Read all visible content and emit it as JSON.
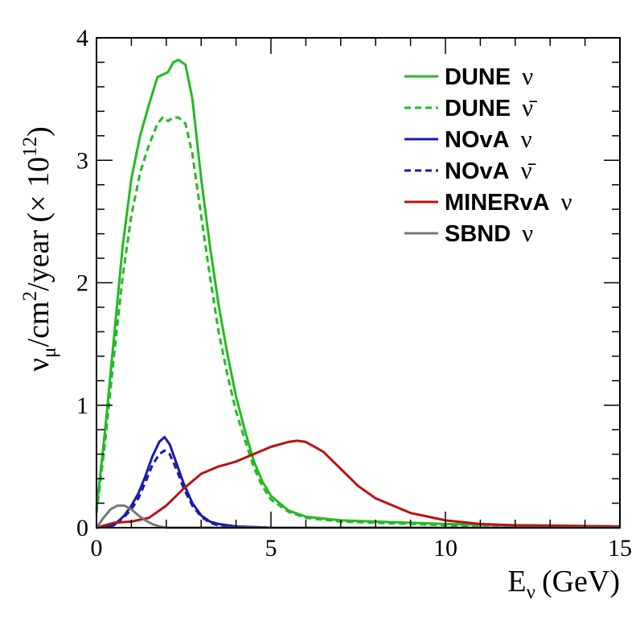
{
  "chart_data": {
    "type": "line",
    "xlabel": "E",
    "xlabel_sub": "ν",
    "xlabel_unit": "(GeV)",
    "ylabel_nu": "ν",
    "ylabel_sub": "μ",
    "ylabel_mid": "/cm",
    "ylabel_sup": "2",
    "ylabel_tail": "/year (× 10",
    "ylabel_exp": "12",
    "ylabel_close": ")",
    "xlim": [
      0,
      15
    ],
    "ylim": [
      0,
      4
    ],
    "x_ticks": [
      "0",
      "5",
      "10",
      "15"
    ],
    "y_ticks": [
      "0",
      "1",
      "2",
      "3",
      "4"
    ],
    "legend_position": "top-right",
    "series": [
      {
        "name": "DUNE",
        "symbol": "ν",
        "color": "#22bb22",
        "style": "solid",
        "x": [
          0,
          0.25,
          0.5,
          0.75,
          1.0,
          1.25,
          1.5,
          1.75,
          1.9,
          2.05,
          2.2,
          2.35,
          2.55,
          2.75,
          3.0,
          3.25,
          3.5,
          3.75,
          4.0,
          4.25,
          4.5,
          4.75,
          5.0,
          5.5,
          6.0,
          7.0,
          8.0,
          9.0,
          10.0,
          12.0,
          15.0
        ],
        "y": [
          0.15,
          0.8,
          1.55,
          2.3,
          2.85,
          3.2,
          3.45,
          3.68,
          3.7,
          3.72,
          3.8,
          3.82,
          3.78,
          3.5,
          2.85,
          2.3,
          1.82,
          1.42,
          1.07,
          0.8,
          0.55,
          0.38,
          0.26,
          0.14,
          0.09,
          0.06,
          0.05,
          0.04,
          0.03,
          0.02,
          0.01
        ]
      },
      {
        "name": "DUNE",
        "symbol": "ν̄",
        "color": "#22bb22",
        "style": "dashed",
        "x": [
          0,
          0.25,
          0.5,
          0.75,
          1.0,
          1.25,
          1.5,
          1.75,
          1.9,
          2.05,
          2.2,
          2.35,
          2.55,
          2.75,
          3.0,
          3.25,
          3.5,
          3.75,
          4.0,
          4.25,
          4.5,
          4.75,
          5.0,
          5.5,
          6.0,
          7.0,
          8.0,
          9.0,
          10.0,
          12.0,
          15.0
        ],
        "y": [
          0.12,
          0.7,
          1.4,
          2.05,
          2.55,
          2.9,
          3.12,
          3.3,
          3.35,
          3.32,
          3.35,
          3.35,
          3.3,
          3.05,
          2.55,
          2.05,
          1.6,
          1.25,
          0.95,
          0.72,
          0.5,
          0.34,
          0.23,
          0.13,
          0.08,
          0.05,
          0.04,
          0.03,
          0.02,
          0.01,
          0.01
        ]
      },
      {
        "name": "NOvA",
        "symbol": "ν",
        "color": "#1a1aaa",
        "style": "solid",
        "x": [
          0,
          0.5,
          0.8,
          1.0,
          1.2,
          1.4,
          1.6,
          1.8,
          1.95,
          2.1,
          2.3,
          2.5,
          2.75,
          3.0,
          3.25,
          3.5,
          4.0,
          5.0,
          6.0,
          8.0,
          10.0,
          15.0
        ],
        "y": [
          0,
          0.02,
          0.1,
          0.18,
          0.28,
          0.42,
          0.58,
          0.7,
          0.74,
          0.68,
          0.52,
          0.36,
          0.2,
          0.1,
          0.05,
          0.03,
          0.01,
          0.0,
          0.0,
          0.0,
          0.0,
          0.0
        ]
      },
      {
        "name": "NOvA",
        "symbol": "ν̄",
        "color": "#1a1aaa",
        "style": "dashed",
        "x": [
          0,
          0.5,
          0.8,
          1.0,
          1.2,
          1.4,
          1.6,
          1.8,
          1.95,
          2.1,
          2.3,
          2.5,
          2.75,
          3.0,
          3.25,
          3.5,
          4.0,
          5.0,
          6.0,
          8.0,
          10.0,
          15.0
        ],
        "y": [
          0,
          0.02,
          0.09,
          0.15,
          0.24,
          0.37,
          0.51,
          0.6,
          0.63,
          0.6,
          0.47,
          0.32,
          0.18,
          0.09,
          0.04,
          0.02,
          0.01,
          0.0,
          0.0,
          0.0,
          0.0,
          0.0
        ]
      },
      {
        "name": "MINERvA",
        "symbol": "ν",
        "color": "#bb1111",
        "style": "solid",
        "x": [
          0,
          0.5,
          1.0,
          1.5,
          2.0,
          2.5,
          3.0,
          3.5,
          4.0,
          4.5,
          5.0,
          5.5,
          5.75,
          6.0,
          6.5,
          7.0,
          7.5,
          8.0,
          9.0,
          10.0,
          11.0,
          12.0,
          15.0
        ],
        "y": [
          0.0,
          0.04,
          0.05,
          0.08,
          0.18,
          0.32,
          0.44,
          0.5,
          0.54,
          0.6,
          0.66,
          0.7,
          0.71,
          0.7,
          0.62,
          0.48,
          0.34,
          0.24,
          0.12,
          0.06,
          0.03,
          0.02,
          0.01
        ]
      },
      {
        "name": "SBND",
        "symbol": "ν",
        "color": "#777777",
        "style": "solid",
        "x": [
          0,
          0.2,
          0.4,
          0.6,
          0.8,
          1.0,
          1.2,
          1.4,
          1.6,
          1.8,
          2.0,
          2.5,
          3.0,
          15.0
        ],
        "y": [
          0.0,
          0.08,
          0.15,
          0.18,
          0.18,
          0.15,
          0.1,
          0.06,
          0.03,
          0.01,
          0.0,
          0.0,
          0.0,
          0.0
        ]
      }
    ]
  }
}
